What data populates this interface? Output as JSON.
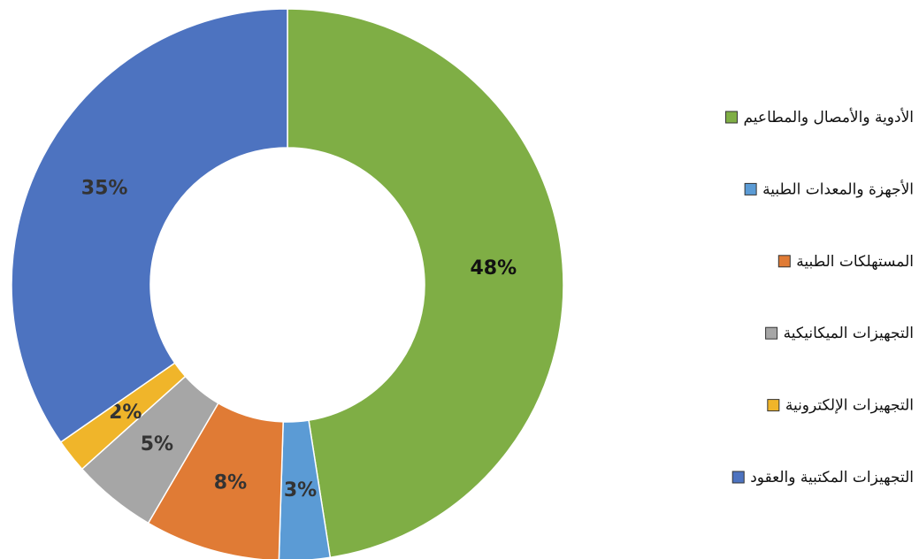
{
  "chart_data": {
    "type": "pie",
    "donut": true,
    "categories": [
      "الأدوية والأمصال والمطاعيم",
      "الأجهزة والمعدات الطبية",
      "المستهلكات الطبية",
      "التجهيزات الميكانيكية",
      "التجهيزات الإلكترونية",
      "التجهيزات المكتبية والعقود"
    ],
    "values": [
      48,
      3,
      8,
      5,
      2,
      35
    ],
    "value_labels": [
      "48%",
      "3%",
      "8%",
      "5%",
      "2%",
      "35%"
    ],
    "colors": [
      "#7fae45",
      "#5b9bd5",
      "#e07b35",
      "#a6a6a6",
      "#f0b52a",
      "#4d73c0"
    ],
    "legend": "right"
  }
}
